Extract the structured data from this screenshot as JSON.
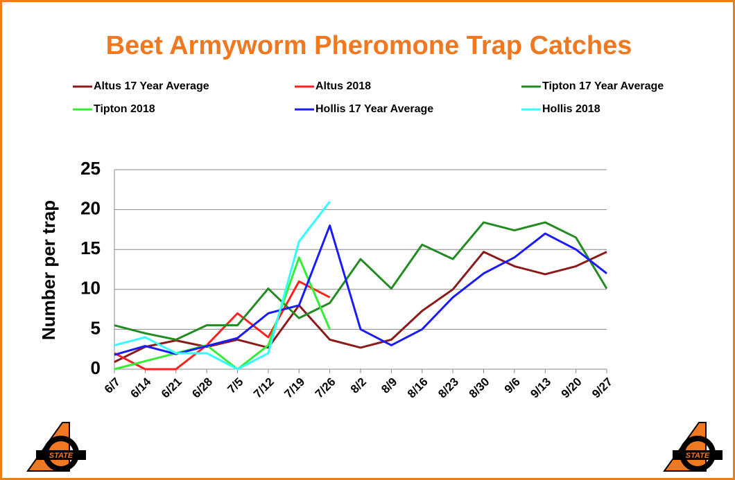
{
  "logo": "STATE",
  "chart_data": {
    "type": "line",
    "title": "Beet Armyworm Pheromone Trap Catches",
    "y_label": "Number per trap",
    "categories": [
      "6/7",
      "6/14",
      "6/21",
      "6/28",
      "7/5",
      "7/12",
      "7/19",
      "7/26",
      "8/2",
      "8/9",
      "8/16",
      "8/23",
      "8/30",
      "9/6",
      "9/13",
      "9/20",
      "9/27"
    ],
    "series": [
      {
        "name": "Altus 17 Year Average",
        "color": "#8b1a1a",
        "values": [
          0.9,
          2.8,
          3.6,
          2.8,
          3.7,
          2.7,
          8,
          3.7,
          2.7,
          3.7,
          7.3,
          10,
          14.7,
          12.9,
          11.9,
          12.9,
          14.7
        ]
      },
      {
        "name": "Altus 2018",
        "color": "#ff2020",
        "values": [
          2,
          0,
          0,
          3,
          7,
          4,
          11,
          9,
          null,
          null,
          null,
          null,
          null,
          null,
          null,
          null,
          null
        ]
      },
      {
        "name": "Tipton 17 Year Average",
        "color": "#228b22",
        "values": [
          5.5,
          4.5,
          3.7,
          5.5,
          5.5,
          10.1,
          6.4,
          8.3,
          13.8,
          10.1,
          15.6,
          13.8,
          18.4,
          17.4,
          18.4,
          16.5,
          10.1
        ]
      },
      {
        "name": "Tipton 2018",
        "color": "#33ee33",
        "values": [
          0,
          1,
          2,
          3,
          0,
          3,
          14,
          5,
          null,
          null,
          null,
          null,
          null,
          null,
          null,
          null,
          null
        ]
      },
      {
        "name": "Hollis 17 Year Average",
        "color": "#1a1aff",
        "values": [
          1.8,
          2.9,
          1.9,
          2.9,
          3.9,
          7,
          8,
          18,
          5,
          3,
          5,
          9,
          12,
          14,
          17,
          15,
          12
        ]
      },
      {
        "name": "Hollis 2018",
        "color": "#33ffff",
        "values": [
          3,
          4,
          2,
          2,
          0,
          2,
          16,
          21,
          null,
          null,
          null,
          null,
          null,
          null,
          null,
          null,
          null
        ]
      }
    ],
    "ylim": [
      0,
      25
    ],
    "yticks": [
      0,
      5,
      10,
      15,
      20,
      25
    ],
    "grid": true,
    "legend": "top"
  }
}
